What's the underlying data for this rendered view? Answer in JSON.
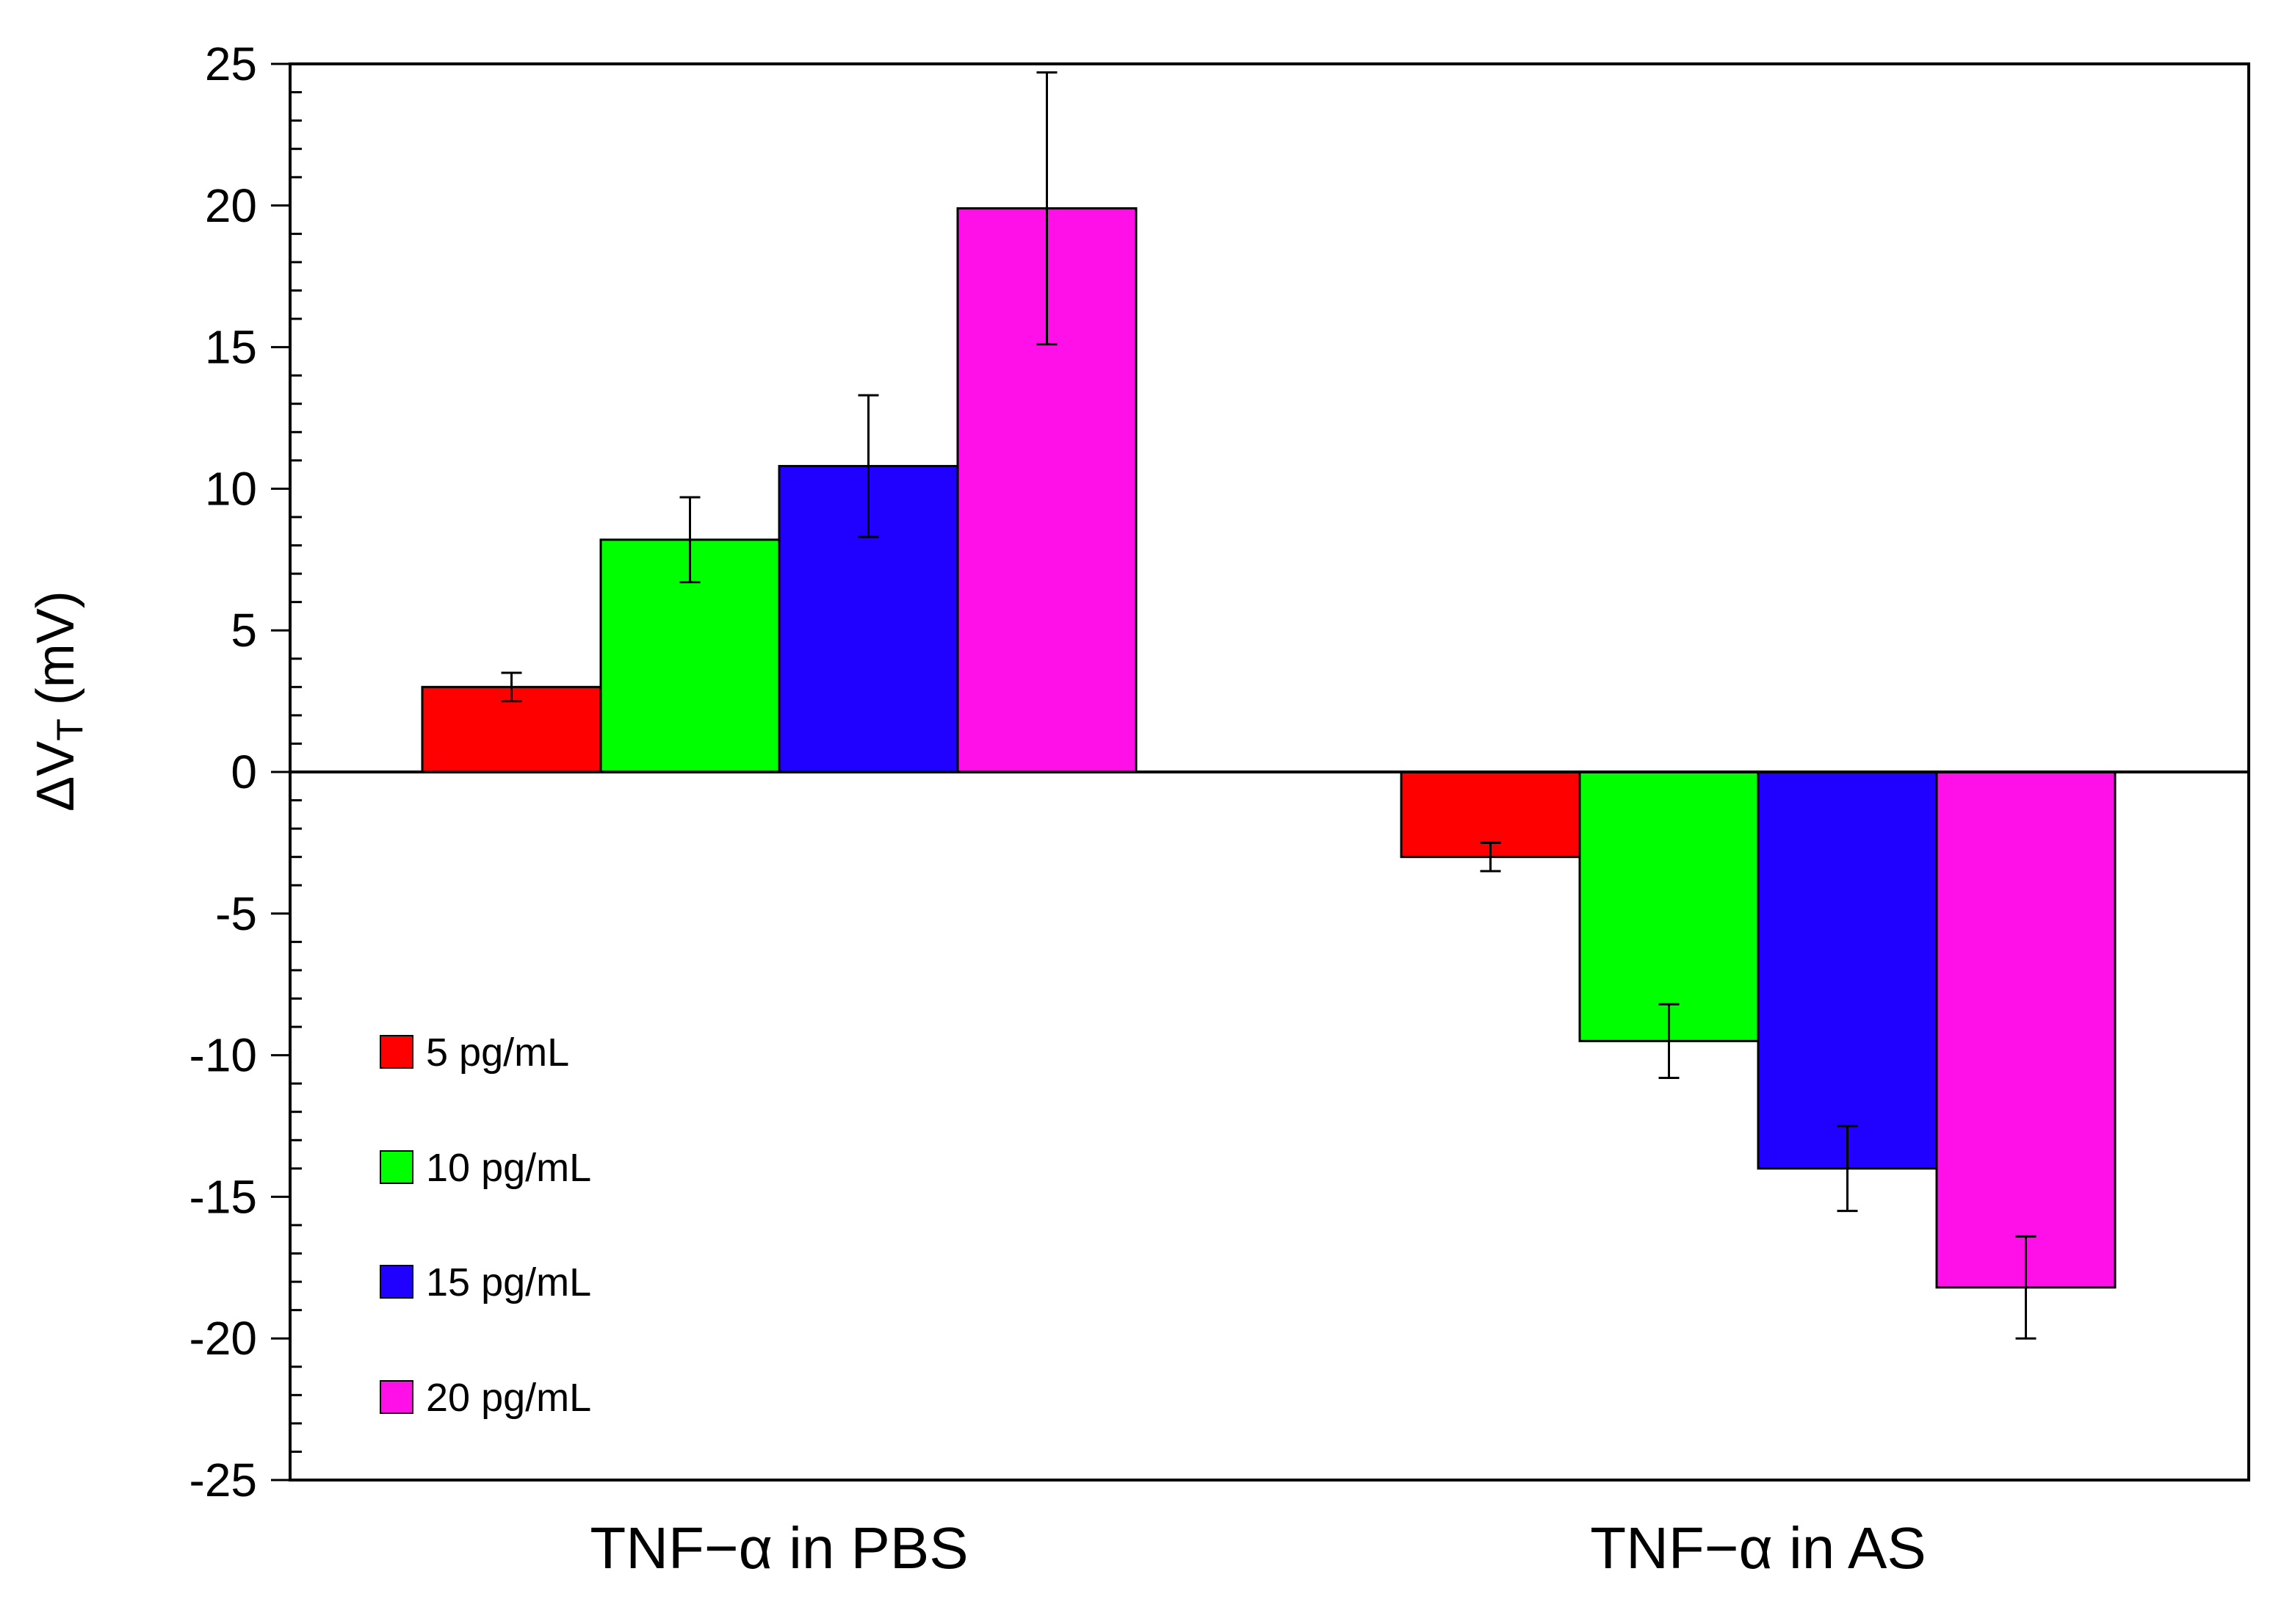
{
  "chart_data": {
    "type": "bar",
    "title": "",
    "xlabel": "",
    "ylabel": {
      "main": "ΔV",
      "sub": "T",
      "unit": "(mV)"
    },
    "ylim": [
      -25,
      25
    ],
    "yticks": [
      25,
      20,
      15,
      10,
      5,
      0,
      -5,
      -10,
      -15,
      -20,
      -25
    ],
    "categories": [
      "TNF−α in PBS",
      "TNF−α in AS"
    ],
    "series": [
      {
        "name": "5 pg/mL",
        "color": "#ff0000",
        "values": [
          3.0,
          -3.0
        ],
        "errors": [
          0.5,
          0.5
        ]
      },
      {
        "name": "10 pg/mL",
        "color": "#00ff00",
        "values": [
          8.2,
          -9.5
        ],
        "errors": [
          1.5,
          1.3
        ]
      },
      {
        "name": "15 pg/mL",
        "color": "#2000ff",
        "values": [
          10.8,
          -14.0
        ],
        "errors": [
          2.5,
          1.5
        ]
      },
      {
        "name": "20 pg/mL",
        "color": "#ff10e8",
        "values": [
          19.9,
          -18.2
        ],
        "errors": [
          4.8,
          1.8
        ]
      }
    ],
    "legend_position": "lower-left",
    "grid": false
  }
}
